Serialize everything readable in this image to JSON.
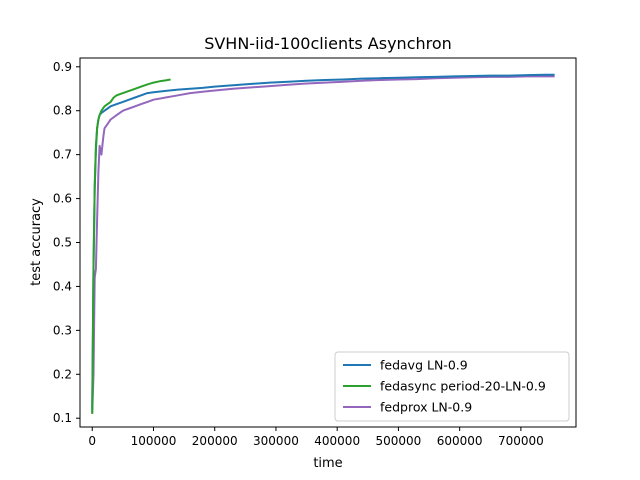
{
  "chart_data": {
    "type": "line",
    "title": "SVHN-iid-100clients Asynchron",
    "xlabel": "time",
    "ylabel": "test accuracy",
    "xlim": [
      -20000,
      790000
    ],
    "ylim": [
      0.08,
      0.92
    ],
    "xticks": [
      0,
      100000,
      200000,
      300000,
      400000,
      500000,
      600000,
      700000
    ],
    "xtick_labels": [
      "0",
      "100000",
      "200000",
      "300000",
      "400000",
      "500000",
      "600000",
      "700000"
    ],
    "yticks": [
      0.1,
      0.2,
      0.3,
      0.4,
      0.5,
      0.6,
      0.7,
      0.8,
      0.9
    ],
    "ytick_labels": [
      "0.1",
      "0.2",
      "0.3",
      "0.4",
      "0.5",
      "0.6",
      "0.7",
      "0.8",
      "0.9"
    ],
    "grid": false,
    "legend_position": "lower-right",
    "series": [
      {
        "name": "fedavg LN-0.9",
        "color": "#1f77b4",
        "x": [
          0,
          2000,
          4000,
          6000,
          8000,
          10000,
          12000,
          15000,
          20000,
          25000,
          30000,
          40000,
          50000,
          60000,
          70000,
          80000,
          90000,
          100000,
          120000,
          140000,
          160000,
          180000,
          200000,
          230000,
          260000,
          290000,
          320000,
          350000,
          380000,
          410000,
          440000,
          470000,
          500000,
          530000,
          560000,
          590000,
          620000,
          650000,
          680000,
          710000,
          740000,
          755000
        ],
        "y": [
          0.12,
          0.45,
          0.62,
          0.71,
          0.76,
          0.78,
          0.79,
          0.795,
          0.8,
          0.805,
          0.81,
          0.815,
          0.82,
          0.825,
          0.83,
          0.835,
          0.84,
          0.842,
          0.845,
          0.848,
          0.85,
          0.852,
          0.855,
          0.858,
          0.861,
          0.864,
          0.866,
          0.868,
          0.87,
          0.871,
          0.873,
          0.874,
          0.875,
          0.876,
          0.877,
          0.878,
          0.879,
          0.88,
          0.88,
          0.881,
          0.882,
          0.882
        ]
      },
      {
        "name": "fedasync period-20-LN-0.9",
        "color": "#2ca02c",
        "x": [
          0,
          2000,
          4000,
          6000,
          8000,
          10000,
          12000,
          15000,
          20000,
          25000,
          30000,
          35000,
          40000,
          50000,
          60000,
          70000,
          80000,
          90000,
          100000,
          110000,
          120000,
          128000
        ],
        "y": [
          0.11,
          0.44,
          0.63,
          0.72,
          0.76,
          0.78,
          0.79,
          0.8,
          0.81,
          0.815,
          0.82,
          0.83,
          0.835,
          0.84,
          0.845,
          0.85,
          0.855,
          0.86,
          0.864,
          0.867,
          0.869,
          0.871
        ]
      },
      {
        "name": "fedprox LN-0.9",
        "color": "#9467bd",
        "x": [
          0,
          2000,
          4000,
          6000,
          8000,
          10000,
          12000,
          15000,
          18000,
          20000,
          25000,
          30000,
          40000,
          50000,
          60000,
          70000,
          80000,
          90000,
          100000,
          120000,
          140000,
          160000,
          180000,
          200000,
          230000,
          260000,
          290000,
          320000,
          350000,
          380000,
          410000,
          440000,
          470000,
          500000,
          530000,
          560000,
          590000,
          620000,
          650000,
          680000,
          710000,
          740000,
          755000
        ],
        "y": [
          0.11,
          0.2,
          0.42,
          0.44,
          0.55,
          0.66,
          0.72,
          0.7,
          0.74,
          0.76,
          0.77,
          0.78,
          0.79,
          0.8,
          0.805,
          0.81,
          0.815,
          0.82,
          0.825,
          0.83,
          0.835,
          0.84,
          0.843,
          0.846,
          0.85,
          0.853,
          0.856,
          0.859,
          0.862,
          0.864,
          0.866,
          0.868,
          0.87,
          0.871,
          0.872,
          0.874,
          0.875,
          0.876,
          0.877,
          0.877,
          0.878,
          0.878,
          0.878
        ]
      }
    ]
  }
}
